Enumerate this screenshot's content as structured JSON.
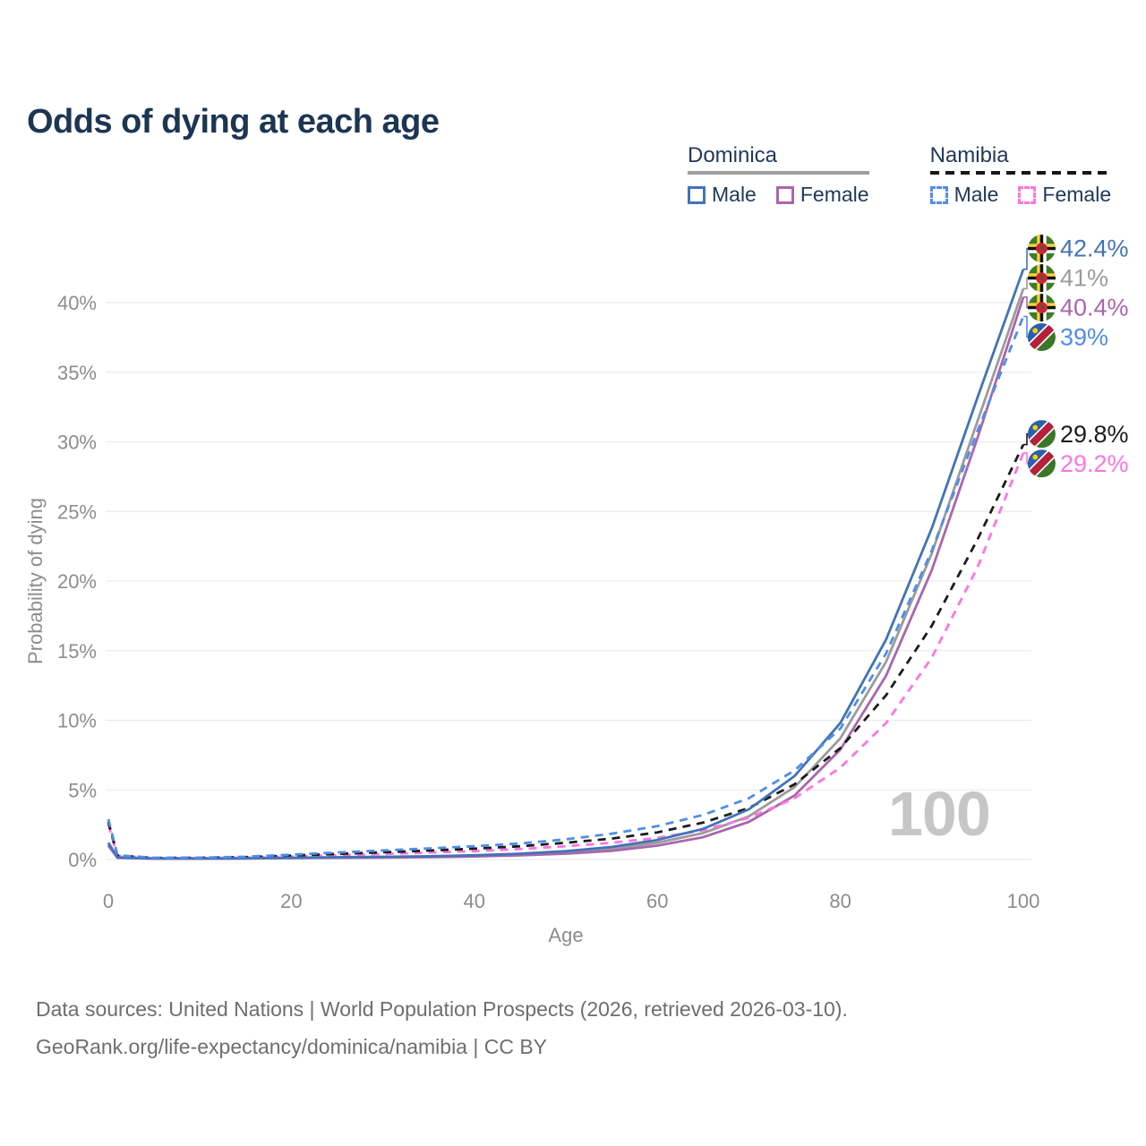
{
  "title": "Odds of dying at each age",
  "watermark": "100",
  "legend": {
    "groups": [
      {
        "name": "Dominica",
        "line_style": "solid",
        "line_color": "#9e9e9e",
        "items": [
          {
            "label": "Male",
            "color": "#4273b8",
            "dash": false
          },
          {
            "label": "Female",
            "color": "#a966ad",
            "dash": false
          }
        ]
      },
      {
        "name": "Namibia",
        "line_style": "dashed",
        "line_color": "#161616",
        "items": [
          {
            "label": "Male",
            "color": "#4f8de9",
            "dash": true
          },
          {
            "label": "Female",
            "color": "#ff74e0",
            "dash": true
          }
        ]
      }
    ]
  },
  "axes": {
    "x_label": "Age",
    "y_label": "Probability of dying"
  },
  "footer": {
    "line1": "Data sources: United Nations | World Population Prospects (2026, retrieved 2026-03-10).",
    "line2": "GeoRank.org/life-expectancy/dominica/namibia | CC BY"
  },
  "chart_data": {
    "type": "line",
    "title": "Odds of dying at each age",
    "xlabel": "Age",
    "ylabel": "Probability of dying",
    "xlim": [
      0,
      100
    ],
    "ylim": [
      0,
      44
    ],
    "grid": "horizontal",
    "legend_position": "top-right",
    "xticks": [
      {
        "value": 0,
        "label": "0"
      },
      {
        "value": 20,
        "label": "20"
      },
      {
        "value": 40,
        "label": "40"
      },
      {
        "value": 60,
        "label": "60"
      },
      {
        "value": 80,
        "label": "80"
      },
      {
        "value": 100,
        "label": "100"
      }
    ],
    "yticks": [
      {
        "value": 0,
        "label": "0%"
      },
      {
        "value": 5,
        "label": "5%"
      },
      {
        "value": 10,
        "label": "10%"
      },
      {
        "value": 15,
        "label": "15%"
      },
      {
        "value": 20,
        "label": "20%"
      },
      {
        "value": 25,
        "label": "25%"
      },
      {
        "value": 30,
        "label": "30%"
      },
      {
        "value": 35,
        "label": "35%"
      },
      {
        "value": 40,
        "label": "40%"
      }
    ],
    "x_ages": [
      0,
      1,
      5,
      10,
      15,
      20,
      25,
      30,
      35,
      40,
      45,
      50,
      55,
      60,
      65,
      70,
      75,
      80,
      85,
      90,
      95,
      100
    ],
    "series": [
      {
        "id": "dominica-male",
        "country": "Dominica",
        "sex": "Male",
        "color": "#4273b8",
        "dash": false,
        "flag": "dominica",
        "end_label": "42.4%",
        "end_value": 42.4,
        "values": [
          1.2,
          0.15,
          0.07,
          0.07,
          0.09,
          0.13,
          0.16,
          0.19,
          0.23,
          0.3,
          0.42,
          0.6,
          0.9,
          1.4,
          2.2,
          3.6,
          6.0,
          9.8,
          15.8,
          23.8,
          33.2,
          42.4
        ]
      },
      {
        "id": "dominica-both",
        "country": "Dominica",
        "sex": "Both",
        "color": "#9b9b9b",
        "dash": false,
        "flag": "dominica",
        "end_label": "41%",
        "end_value": 41,
        "values": [
          1.1,
          0.14,
          0.065,
          0.065,
          0.085,
          0.11,
          0.14,
          0.17,
          0.2,
          0.26,
          0.36,
          0.5,
          0.75,
          1.2,
          1.9,
          3.1,
          5.2,
          8.7,
          14.2,
          22.0,
          31.5,
          41.0
        ]
      },
      {
        "id": "dominica-female",
        "country": "Dominica",
        "sex": "Female",
        "color": "#a966ad",
        "dash": false,
        "flag": "dominica",
        "end_label": "40.4%",
        "end_value": 40.4,
        "values": [
          1.0,
          0.12,
          0.06,
          0.06,
          0.08,
          0.1,
          0.12,
          0.14,
          0.17,
          0.22,
          0.3,
          0.42,
          0.62,
          1.0,
          1.6,
          2.7,
          4.6,
          7.9,
          13.2,
          20.8,
          30.3,
          40.4
        ]
      },
      {
        "id": "namibia-male",
        "country": "Namibia",
        "sex": "Male",
        "color": "#4f8de9",
        "dash": true,
        "flag": "namibia",
        "end_label": "39%",
        "end_value": 39,
        "values": [
          2.9,
          0.3,
          0.12,
          0.13,
          0.2,
          0.35,
          0.5,
          0.65,
          0.8,
          0.95,
          1.15,
          1.45,
          1.85,
          2.4,
          3.2,
          4.4,
          6.4,
          9.4,
          14.8,
          22.2,
          30.8,
          39.0
        ]
      },
      {
        "id": "namibia-both",
        "country": "Namibia",
        "sex": "Both",
        "color": "#1c1c1c",
        "dash": true,
        "flag": "namibia",
        "end_label": "29.8%",
        "end_value": 29.8,
        "values": [
          2.7,
          0.28,
          0.11,
          0.12,
          0.17,
          0.28,
          0.4,
          0.52,
          0.64,
          0.78,
          0.95,
          1.2,
          1.5,
          1.95,
          2.65,
          3.7,
          5.4,
          8.0,
          11.8,
          16.8,
          23.0,
          29.8
        ]
      },
      {
        "id": "namibia-female",
        "country": "Namibia",
        "sex": "Female",
        "color": "#ff74e0",
        "dash": true,
        "flag": "namibia",
        "end_label": "29.2%",
        "end_value": 29.2,
        "values": [
          2.5,
          0.26,
          0.1,
          0.11,
          0.14,
          0.22,
          0.31,
          0.4,
          0.5,
          0.6,
          0.75,
          0.95,
          1.2,
          1.55,
          2.1,
          3.0,
          4.4,
          6.6,
          9.8,
          14.5,
          21.0,
          29.2
        ]
      }
    ]
  }
}
